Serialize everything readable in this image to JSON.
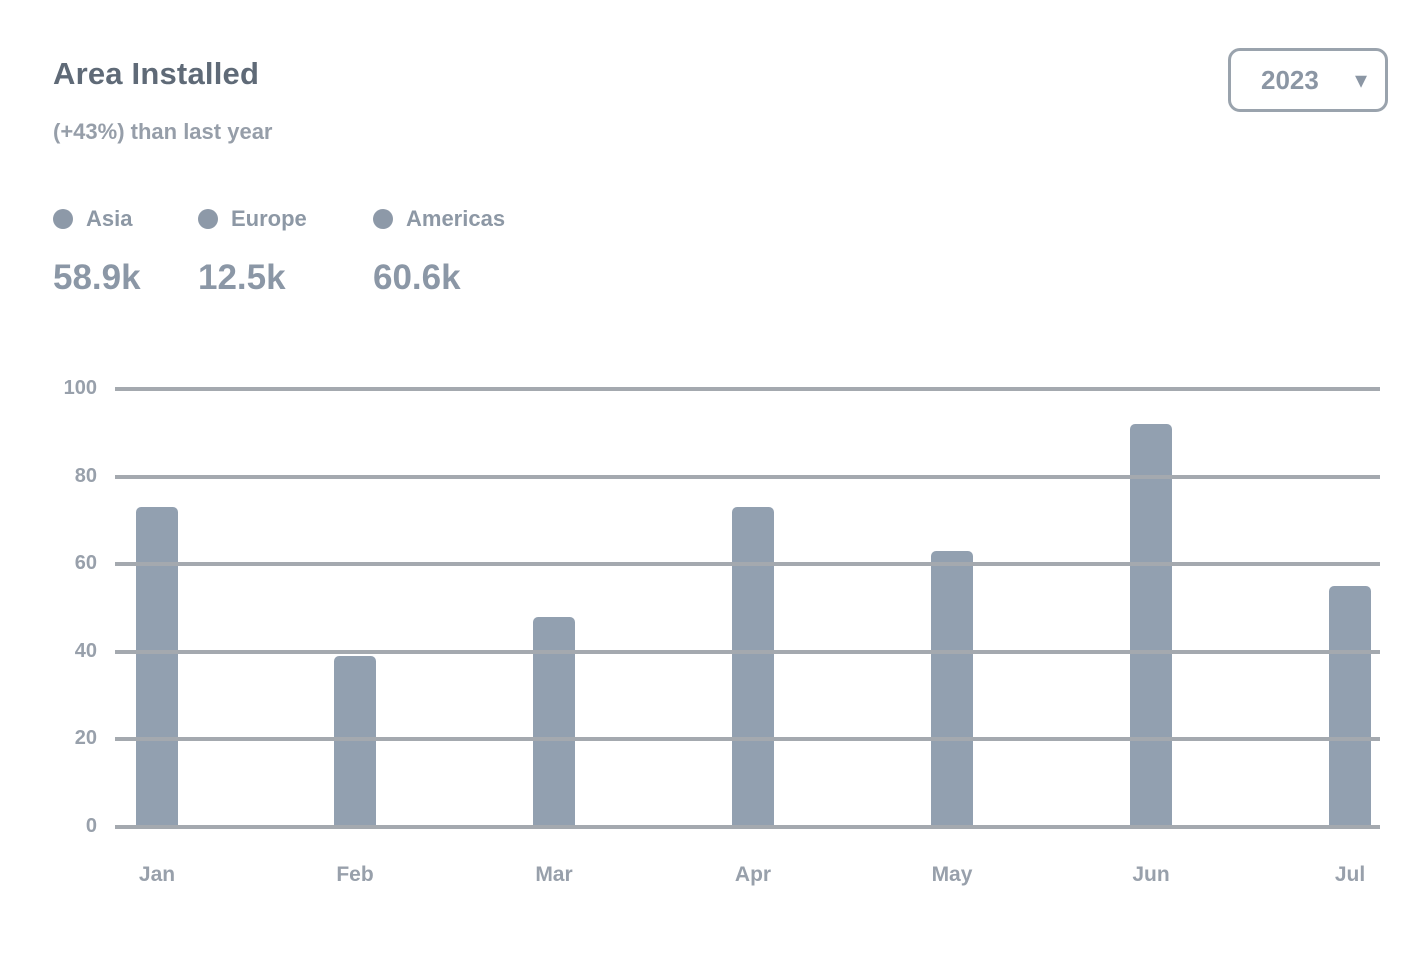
{
  "header": {
    "title": "Area Installed",
    "subtitle": "(+43%) than last year"
  },
  "controls": {
    "year": "2023",
    "chevron_icon": "▾"
  },
  "legend": {
    "items": [
      {
        "label": "Asia",
        "total": "58.9k"
      },
      {
        "label": "Europe",
        "total": "12.5k"
      },
      {
        "label": "Americas",
        "total": "60.6k"
      }
    ]
  },
  "chart_data": {
    "type": "bar",
    "title": "Area Installed",
    "subtitle": "(+43%) than last year",
    "categories": [
      "Jan",
      "Feb",
      "Mar",
      "Apr",
      "May",
      "Jun",
      "Jul"
    ],
    "values": [
      73,
      39,
      48,
      73,
      63,
      92,
      55
    ],
    "xlabel": "",
    "ylabel": "",
    "ylim": [
      0,
      100
    ],
    "yticks": [
      0,
      20,
      40,
      60,
      80,
      100
    ],
    "grid": "horizontal",
    "legend_position": "top-left"
  },
  "colors": {
    "bar": "#92A0B0",
    "grid": "#A4A9AF",
    "title": "#5F6A77",
    "subtitle": "#969EA9",
    "legend_dot": "#8D99A8",
    "legend_label": "#8D98A5",
    "legend_total": "#8B97A6",
    "axis_label": "#98A0AB",
    "select_border": "#9AA3AD",
    "select_text": "#8B96A4"
  }
}
